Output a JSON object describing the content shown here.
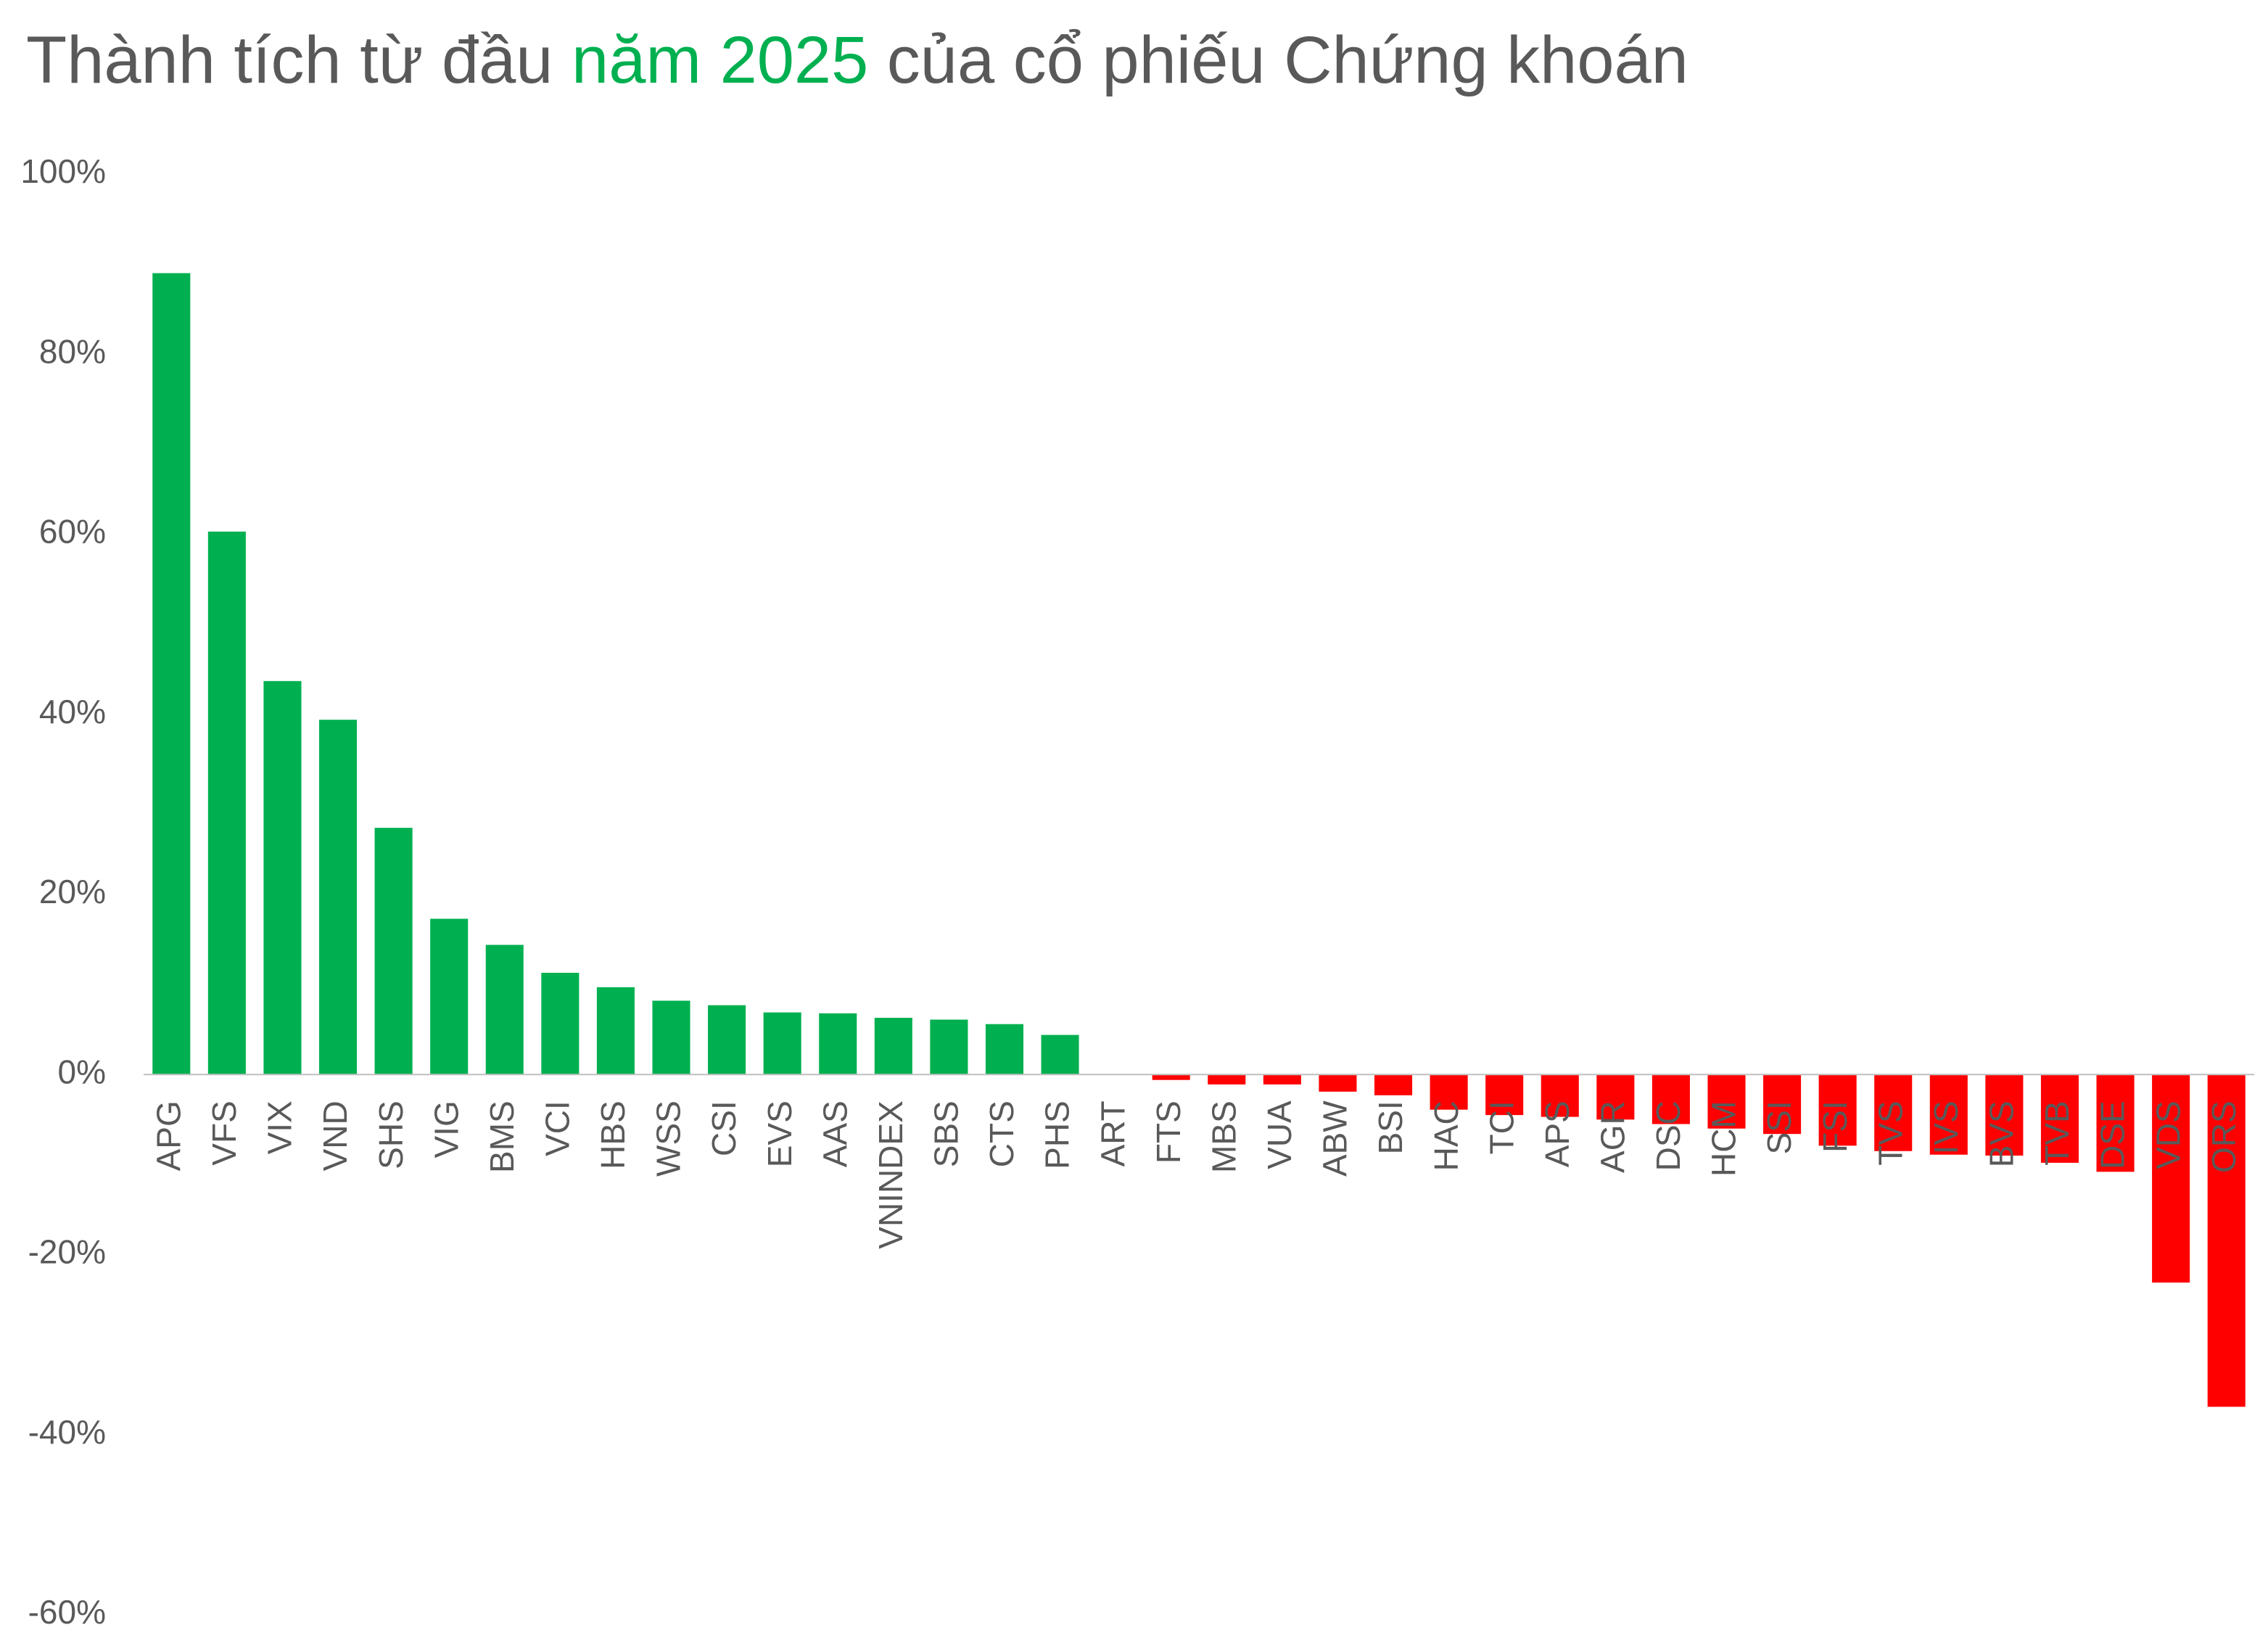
{
  "chart_data": {
    "type": "bar",
    "title": [
      {
        "text": "Thành tích từ đầu ",
        "color": "#595959"
      },
      {
        "text": "năm 2025",
        "color": "#00b050"
      },
      {
        "text": " của cổ phiếu Chứng khoán",
        "color": "#595959"
      }
    ],
    "categories": [
      "APG",
      "VFS",
      "VIX",
      "VND",
      "SHS",
      "VIG",
      "BMS",
      "VCI",
      "HBS",
      "WSS",
      "CSI",
      "EVS",
      "AAS",
      "VNINDEX",
      "SBS",
      "CTS",
      "PHS",
      "ART",
      "FTS",
      "MBS",
      "VUA",
      "ABW",
      "BSI",
      "HAC",
      "TCI",
      "APS",
      "AGR",
      "DSC",
      "HCM",
      "SSI",
      "FSI",
      "TVS",
      "IVS",
      "BVS",
      "TVB",
      "DSE",
      "VDS",
      "ORS"
    ],
    "values": [
      89.0,
      60.3,
      43.7,
      39.4,
      27.4,
      17.3,
      14.4,
      11.3,
      9.7,
      8.2,
      7.7,
      6.9,
      6.8,
      6.3,
      6.1,
      5.6,
      4.4,
      0,
      -0.6,
      -1.1,
      -1.1,
      -1.9,
      -2.3,
      -3.9,
      -4.5,
      -4.7,
      -5.0,
      -5.5,
      -6.0,
      -6.6,
      -7.9,
      -8.5,
      -8.9,
      -9.0,
      -9.8,
      -10.8,
      -23.1,
      -36.9
    ],
    "positive_color": "#00b050",
    "negative_color": "#ff0000",
    "ylim": [
      -60,
      100
    ],
    "yticks": [
      {
        "value": -60,
        "label": "-60%"
      },
      {
        "value": -40,
        "label": "-40%"
      },
      {
        "value": -20,
        "label": "-20%"
      },
      {
        "value": 0,
        "label": "0%"
      },
      {
        "value": 20,
        "label": "20%"
      },
      {
        "value": 40,
        "label": "40%"
      },
      {
        "value": 60,
        "label": "60%"
      },
      {
        "value": 80,
        "label": "80%"
      },
      {
        "value": 100,
        "label": "100%"
      }
    ],
    "grid": false
  }
}
